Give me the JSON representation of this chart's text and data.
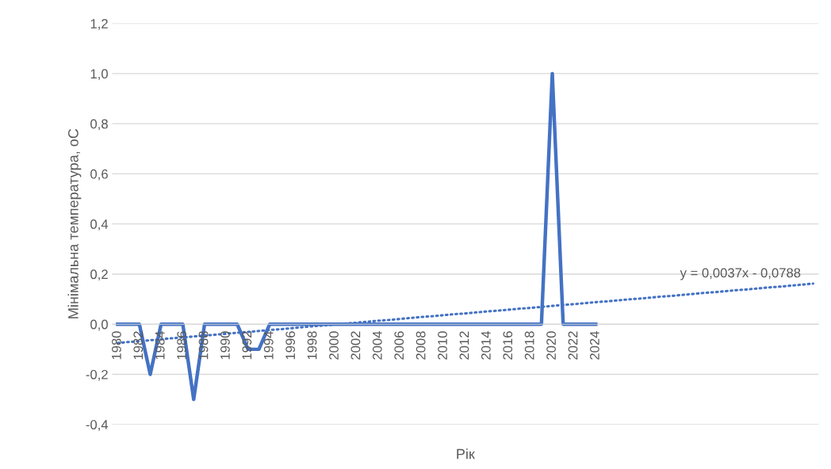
{
  "chart_data": {
    "type": "line",
    "xlabel": "Рік",
    "ylabel": "Мінімальна температура, оС",
    "categories": [
      "1980",
      null,
      "1982",
      null,
      "1984",
      null,
      "1986",
      null,
      "1988",
      null,
      "1990",
      null,
      "1992",
      null,
      "1994",
      null,
      "1996",
      null,
      "1998",
      null,
      "2000",
      null,
      "2002",
      null,
      "2004",
      null,
      "2006",
      null,
      "2008",
      null,
      "2010",
      null,
      "2012",
      null,
      "2014",
      null,
      "2016",
      null,
      "2018",
      null,
      "2020",
      null,
      "2022",
      null,
      "2024",
      null,
      null,
      null,
      null,
      null,
      null,
      null,
      null,
      null,
      null,
      null,
      null,
      null,
      null,
      null,
      null,
      null,
      null,
      null,
      null
    ],
    "series": [
      {
        "color": "#4472c4",
        "line_style": "solid",
        "values": [
          0,
          0,
          0,
          -0.2,
          0,
          0,
          0,
          -0.3,
          0,
          0,
          0,
          0,
          -0.1,
          -0.1,
          0,
          0,
          0,
          0,
          0,
          0,
          0,
          0,
          0,
          0,
          0,
          0,
          0,
          0,
          0,
          0,
          0,
          0,
          0,
          0,
          0,
          0,
          0,
          0,
          0,
          0,
          1.0,
          0,
          0,
          0,
          0,
          null,
          null,
          null,
          null,
          null,
          null,
          null,
          null,
          null,
          null,
          null,
          null,
          null,
          null,
          null,
          null,
          null,
          null,
          null,
          null
        ]
      },
      {
        "color": "#4472c4",
        "line_style": "dotted",
        "values": [
          -0.075,
          -0.071,
          -0.068,
          -0.064,
          -0.06,
          -0.056,
          -0.053,
          -0.049,
          -0.045,
          -0.042,
          -0.038,
          -0.034,
          -0.031,
          -0.027,
          -0.023,
          -0.02,
          -0.016,
          -0.012,
          -0.008,
          -0.005,
          -0.001,
          0.003,
          0.006,
          0.01,
          0.014,
          0.017,
          0.021,
          0.025,
          0.029,
          0.032,
          0.036,
          0.04,
          0.043,
          0.047,
          0.051,
          0.054,
          0.058,
          0.062,
          0.065,
          0.069,
          0.073,
          0.077,
          0.08,
          0.084,
          0.088,
          0.091,
          0.095,
          0.099,
          0.102,
          0.106,
          0.11,
          0.113,
          0.117,
          0.121,
          0.125,
          0.128,
          0.132,
          0.136,
          0.139,
          0.143,
          0.147,
          0.15,
          0.154,
          0.158,
          0.162
        ]
      }
    ],
    "ylim": [
      -0.4,
      1.2
    ],
    "yticks": [
      {
        "value": -0.4,
        "label": "-0,4"
      },
      {
        "value": -0.2,
        "label": "-0,2"
      },
      {
        "value": 0,
        "label": "0,0"
      },
      {
        "value": 0.2,
        "label": "0,2"
      },
      {
        "value": 0.4,
        "label": "0,4"
      },
      {
        "value": 0.6,
        "label": "0,6"
      },
      {
        "value": 0.8,
        "label": "0,8"
      },
      {
        "value": 1.0,
        "label": "1,0"
      },
      {
        "value": 1.2,
        "label": "1,2"
      }
    ],
    "grid": "y",
    "legend": false,
    "marker": "none",
    "annotations": [
      "y = 0,0037x - 0,0788"
    ]
  }
}
